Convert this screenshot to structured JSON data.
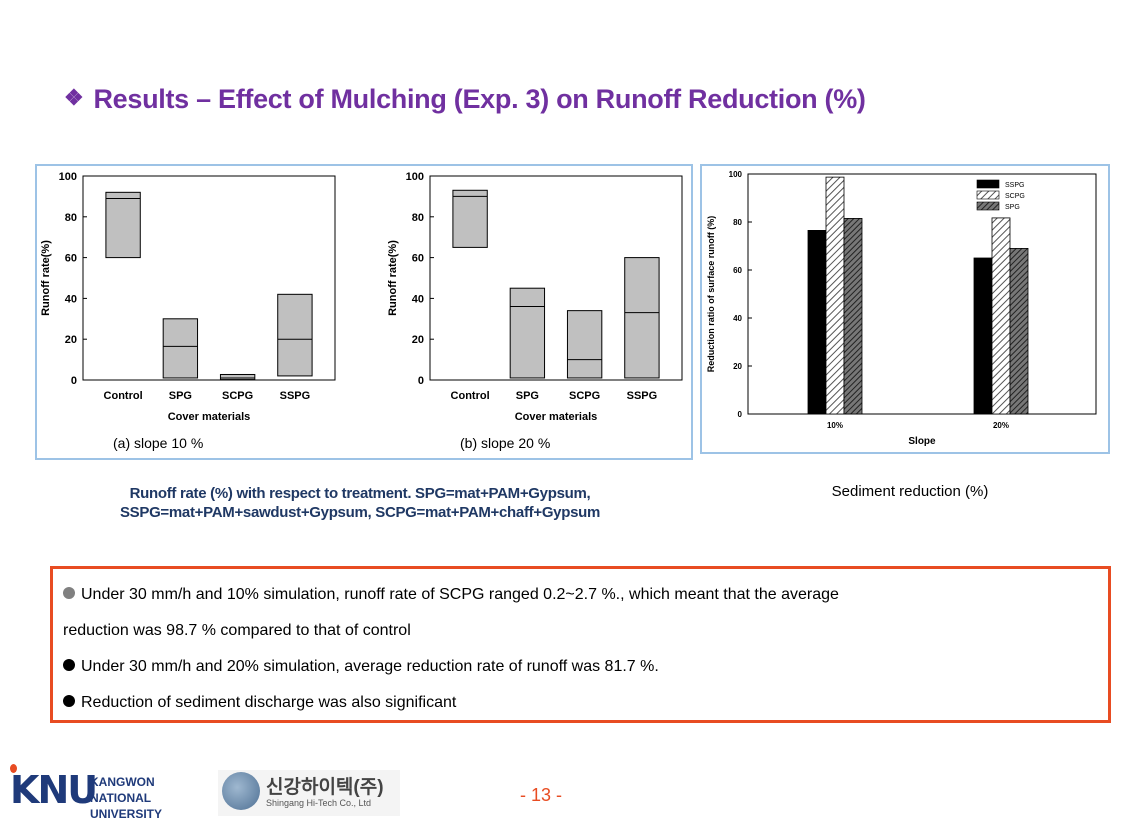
{
  "title": {
    "bullet": "❖",
    "text": "Results – Effect of Mulching (Exp. 3) on Runoff Reduction (%)"
  },
  "chart_data": [
    {
      "type": "box",
      "label": "(a) slope 10 %",
      "xlabel": "Cover materials",
      "ylabel": "Runoff rate(%)",
      "ylim": [
        0,
        100
      ],
      "yticks": [
        0,
        20,
        40,
        60,
        80,
        100
      ],
      "categories": [
        "Control",
        "SPG",
        "SCPG",
        "SSPG"
      ],
      "boxes": [
        {
          "low": 60,
          "median": 89,
          "high": 92
        },
        {
          "low": 1,
          "median": 16.5,
          "high": 30
        },
        {
          "low": 0.2,
          "median": 1,
          "high": 2.7
        },
        {
          "low": 2,
          "median": 20,
          "high": 42
        }
      ]
    },
    {
      "type": "box",
      "label": "(b) slope 20 %",
      "xlabel": "Cover materials",
      "ylabel": "Runoff rate(%)",
      "ylim": [
        0,
        100
      ],
      "yticks": [
        0,
        20,
        40,
        60,
        80,
        100
      ],
      "categories": [
        "Control",
        "SPG",
        "SCPG",
        "SSPG"
      ],
      "boxes": [
        {
          "low": 65,
          "median": 90,
          "high": 93
        },
        {
          "low": 1,
          "median": 36,
          "high": 45
        },
        {
          "low": 1,
          "median": 10,
          "high": 34
        },
        {
          "low": 1,
          "median": 33,
          "high": 60
        }
      ]
    },
    {
      "type": "bar",
      "xlabel": "Slope",
      "ylabel": "Reduction ratio of surface runoff (%)",
      "ylim": [
        0,
        100
      ],
      "yticks": [
        0,
        20,
        40,
        60,
        80,
        100
      ],
      "categories": [
        "10%",
        "20%"
      ],
      "legend_position": "top-right",
      "series": [
        {
          "name": "SSPG",
          "values": [
            76.5,
            65
          ],
          "color": "#000000"
        },
        {
          "name": "SCPG",
          "values": [
            98.7,
            81.7
          ],
          "color": "#d0d0d0"
        },
        {
          "name": "SPG",
          "values": [
            81.5,
            69
          ],
          "color": "#555555"
        }
      ]
    }
  ],
  "captions": {
    "left_line1": "Runoff rate (%) with respect to treatment. SPG=mat+PAM+Gypsum,",
    "left_line2": "SSPG=mat+PAM+sawdust+Gypsum, SCPG=mat+PAM+chaff+Gypsum",
    "right": "Sediment reduction (%)"
  },
  "notes": {
    "line1": "Under 30 mm/h and 10% simulation, runoff rate of SCPG ranged 0.2~2.7 %., which meant that the average",
    "line1b": "reduction was 98.7 % compared to that of control",
    "line2": "Under 30 mm/h and 20% simulation, average reduction rate of runoff was 81.7 %.",
    "line3": "Reduction of sediment discharge was also significant"
  },
  "footer": {
    "knu_mark": "KNU",
    "knu_line1": "KANGWON NATIONAL",
    "knu_line2": "UNIVERSITY",
    "company_kr": "신강하이텍(주)",
    "company_en": "Shingang Hi-Tech Co., Ltd",
    "page": "- 13 -"
  }
}
